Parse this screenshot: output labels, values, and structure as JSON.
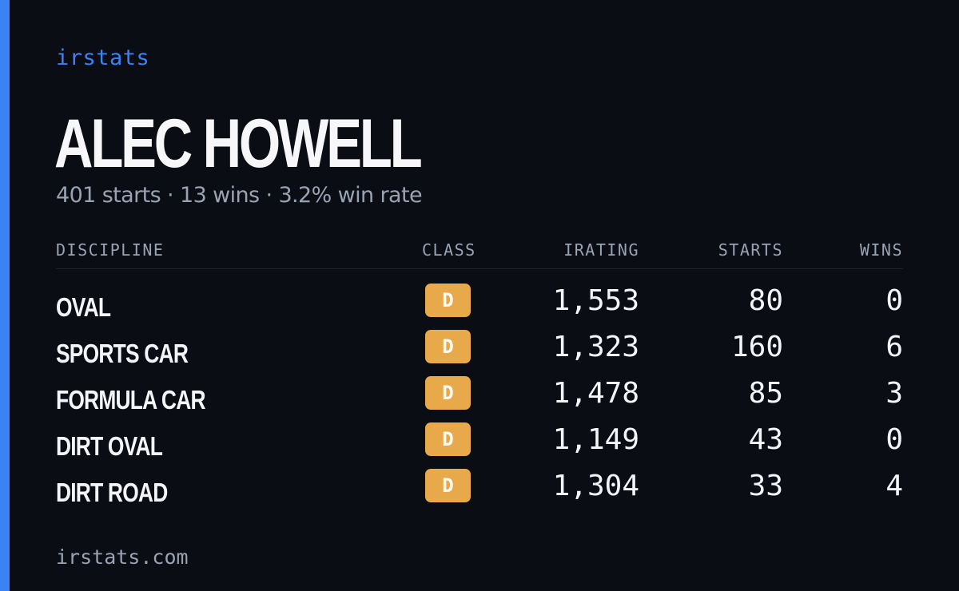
{
  "colors": {
    "background": "#0b0d14",
    "accent": "#3b82f6",
    "class_d": "#e8a94a",
    "muted": "#9aa3b3",
    "text": "#f4f5f8"
  },
  "brand": "irstats",
  "driver": {
    "name": "ALEC HOWELL",
    "summary": "401 starts · 13 wins · 3.2% win rate"
  },
  "table": {
    "headers": {
      "discipline": "DISCIPLINE",
      "class": "CLASS",
      "irating": "IRATING",
      "starts": "STARTS",
      "wins": "WINS"
    },
    "rows": [
      {
        "discipline": "OVAL",
        "class": "D",
        "irating": "1,553",
        "starts": "80",
        "wins": "0"
      },
      {
        "discipline": "SPORTS CAR",
        "class": "D",
        "irating": "1,323",
        "starts": "160",
        "wins": "6"
      },
      {
        "discipline": "FORMULA CAR",
        "class": "D",
        "irating": "1,478",
        "starts": "85",
        "wins": "3"
      },
      {
        "discipline": "DIRT OVAL",
        "class": "D",
        "irating": "1,149",
        "starts": "43",
        "wins": "0"
      },
      {
        "discipline": "DIRT ROAD",
        "class": "D",
        "irating": "1,304",
        "starts": "33",
        "wins": "4"
      }
    ]
  },
  "footer": {
    "url": "irstats.com"
  }
}
